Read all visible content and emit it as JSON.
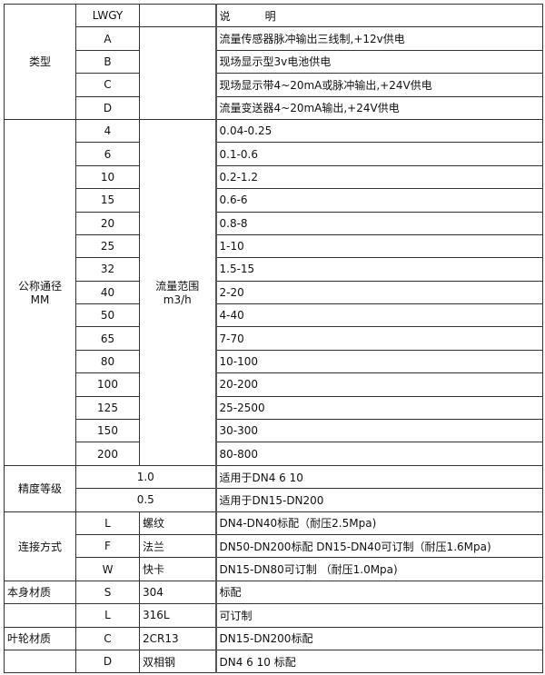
{
  "header": {
    "model": "LWGY",
    "desc": "说          明"
  },
  "type_section": {
    "label": "类型",
    "rows": [
      {
        "code": "A",
        "desc": "流量传感器脉冲输出三线制,+12v供电"
      },
      {
        "code": "B",
        "desc": "现场显示型3v电池供电"
      },
      {
        "code": "C",
        "desc": "现场显示带4~20mA或脉冲输出,+24V供电"
      },
      {
        "code": "D",
        "desc": "流量变送器4~20mA输出,+24V供电"
      }
    ]
  },
  "diameter_section": {
    "label": "公称通径",
    "unit": "MM",
    "range_label": "流量范围",
    "range_unit": "m3/h",
    "rows": [
      {
        "code": "4",
        "range": "0.04-0.25"
      },
      {
        "code": "6",
        "range": "0.1-0.6"
      },
      {
        "code": "10",
        "range": "0.2-1.2"
      },
      {
        "code": "15",
        "range": "0.6-6"
      },
      {
        "code": "20",
        "range": "0.8-8"
      },
      {
        "code": "25",
        "range": "1-10"
      },
      {
        "code": "32",
        "range": "1.5-15"
      },
      {
        "code": "40",
        "range": "2-20"
      },
      {
        "code": "50",
        "range": "4-40"
      },
      {
        "code": "65",
        "range": "7-70"
      },
      {
        "code": "80",
        "range": "10-100"
      },
      {
        "code": "100",
        "range": "20-200"
      },
      {
        "code": "125",
        "range": "25-2500"
      },
      {
        "code": "150",
        "range": "30-300"
      },
      {
        "code": "200",
        "range": "80-800"
      }
    ]
  },
  "accuracy_section": {
    "label": "精度等级",
    "rows": [
      {
        "code": "1.0",
        "desc": "适用于DN4  6  10"
      },
      {
        "code": "0.5",
        "desc": "适用于DN15-DN200"
      }
    ]
  },
  "connection_section": {
    "label": "连接方式",
    "rows": [
      {
        "code": "L",
        "name": "螺纹",
        "desc": "DN4-DN40标配（耐压2.5Mpa)"
      },
      {
        "code": "F",
        "name": "法兰",
        "desc": "DN50-DN200标配 DN15-DN40可订制（耐压1.6Mpa)"
      },
      {
        "code": "W",
        "name": "快卡",
        "desc": "DN15-DN80可订制 （耐压1.0Mpa)"
      }
    ]
  },
  "body_material_section": {
    "label": "本身材质",
    "rows": [
      {
        "code": "S",
        "name": "304",
        "desc": "标配"
      },
      {
        "code": "L",
        "name": "316L",
        "desc": "可订制"
      }
    ]
  },
  "impeller_material_section": {
    "label": "叶轮材质",
    "rows": [
      {
        "code": "C",
        "name": "2CR13",
        "desc": "DN15-DN200标配"
      },
      {
        "code": "D",
        "name": "双相钢",
        "desc": "DN4 6 10 标配"
      }
    ]
  }
}
